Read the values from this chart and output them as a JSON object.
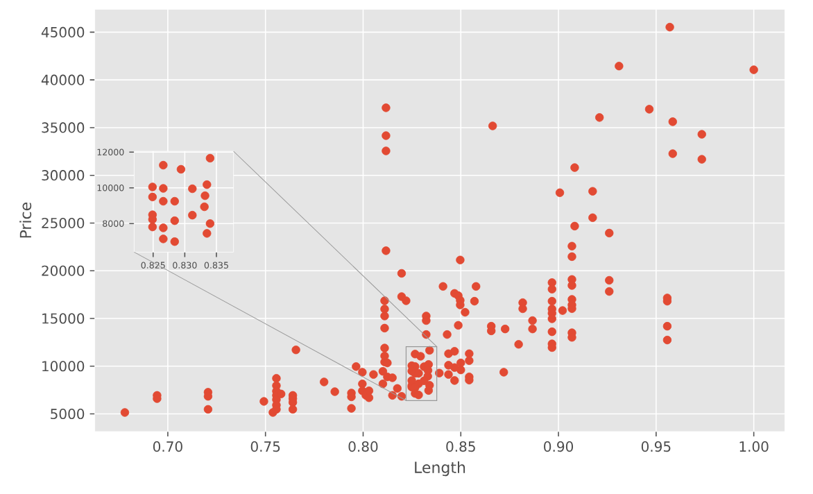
{
  "chart_data": [
    {
      "type": "scatter",
      "xlabel": "Length",
      "ylabel": "Price",
      "color": "#e24a33",
      "marker": "circle",
      "grid": true,
      "xlim": [
        0.6626,
        1.0159
      ],
      "ylim": [
        3150,
        47400
      ],
      "xticks": [
        {
          "value": 0.7,
          "label": "0.70"
        },
        {
          "value": 0.75,
          "label": "0.75"
        },
        {
          "value": 0.8,
          "label": "0.80"
        },
        {
          "value": 0.85,
          "label": "0.85"
        },
        {
          "value": 0.9,
          "label": "0.90"
        },
        {
          "value": 0.95,
          "label": "0.95"
        },
        {
          "value": 1.0,
          "label": "1.00"
        }
      ],
      "yticks": [
        5000,
        10000,
        15000,
        20000,
        25000,
        30000,
        35000,
        40000,
        45000
      ],
      "x": [
        0.678,
        0.6945,
        0.6945,
        0.7206,
        0.7206,
        0.7206,
        0.7492,
        0.7538,
        0.7556,
        0.7556,
        0.7556,
        0.7556,
        0.7556,
        0.7556,
        0.7556,
        0.758,
        0.764,
        0.764,
        0.764,
        0.764,
        0.7656,
        0.78,
        0.7855,
        0.794,
        0.794,
        0.794,
        0.7964,
        0.7996,
        0.7996,
        0.7996,
        0.8014,
        0.803,
        0.803,
        0.8053,
        0.8101,
        0.8101,
        0.811,
        0.811,
        0.811,
        0.811,
        0.811,
        0.811,
        0.811,
        0.8117,
        0.8117,
        0.8117,
        0.8117,
        0.8124,
        0.8124,
        0.815,
        0.815,
        0.8175,
        0.8197,
        0.8197,
        0.8197,
        0.822,
        0.8323,
        0.8323,
        0.8323,
        0.839,
        0.8409,
        0.843,
        0.8437,
        0.8437,
        0.8437,
        0.8468,
        0.8468,
        0.8468,
        0.8468,
        0.8487,
        0.8497,
        0.8497,
        0.8497,
        0.8487,
        0.85,
        0.85,
        0.8543,
        0.8543,
        0.8543,
        0.8543,
        0.8522,
        0.857,
        0.8578,
        0.8663,
        0.8656,
        0.8656,
        0.8727,
        0.872,
        0.8796,
        0.8817,
        0.8817,
        0.8867,
        0.8867,
        0.8967,
        0.8967,
        0.8967,
        0.8967,
        0.8967,
        0.8967,
        0.8967,
        0.8967,
        0.8967,
        0.9007,
        0.9021,
        0.9069,
        0.9069,
        0.9069,
        0.9069,
        0.9069,
        0.9069,
        0.9069,
        0.9069,
        0.9069,
        0.9083,
        0.9083,
        0.9175,
        0.9175,
        0.921,
        0.926,
        0.926,
        0.926,
        0.931,
        0.9465,
        0.9557,
        0.9557,
        0.9557,
        0.9557,
        0.957,
        0.9585,
        0.9585,
        0.9734,
        0.9734,
        1.0,
        0.8266,
        0.8294,
        0.834,
        0.8249,
        0.8266,
        0.8312,
        0.8335,
        0.8249,
        0.8332,
        0.8266,
        0.8284,
        0.8331,
        0.8284,
        0.8312,
        0.834,
        0.8249,
        0.8249,
        0.8249,
        0.8266,
        0.8335,
        0.8266,
        0.8284
      ],
      "values": [
        5150,
        6940,
        6600,
        7270,
        6840,
        5480,
        6310,
        5150,
        8730,
        7960,
        7380,
        6940,
        6500,
        5920,
        5480,
        7090,
        6940,
        6600,
        6210,
        5480,
        11710,
        8350,
        7330,
        7190,
        6790,
        5580,
        9960,
        9370,
        8150,
        7420,
        6940,
        6690,
        7420,
        9130,
        8150,
        9460,
        13990,
        15260,
        15990,
        16860,
        10440,
        11070,
        11900,
        37080,
        34160,
        32560,
        22100,
        10340,
        8880,
        8790,
        6940,
        7670,
        19730,
        17290,
        6840,
        16860,
        15260,
        14780,
        13320,
        9280,
        18360,
        13320,
        11310,
        10100,
        9130,
        11560,
        9860,
        8500,
        17630,
        17390,
        21130,
        16900,
        16420,
        14280,
        10340,
        9610,
        11310,
        10580,
        8880,
        8540,
        15650,
        16810,
        18360,
        35180,
        14190,
        13700,
        13900,
        9370,
        12290,
        16660,
        16020,
        14780,
        13900,
        18760,
        18070,
        16810,
        15990,
        15550,
        14970,
        13610,
        12340,
        11950,
        28180,
        15830,
        22580,
        21480,
        19090,
        18460,
        17000,
        16420,
        16030,
        13500,
        13020,
        30810,
        24680,
        28330,
        25560,
        36060,
        23950,
        19000,
        17830,
        41450,
        36930,
        17150,
        16810,
        14190,
        12740,
        45530,
        35620,
        32270,
        34300,
        31680,
        41060,
        11270,
        11040,
        11660,
        10050,
        9970,
        9950,
        10180,
        9490,
        9560,
        9250,
        9250,
        8940,
        8160,
        8470,
        8000,
        8490,
        7970,
        7810,
        7760,
        7450,
        7140,
        6990
      ]
    },
    {
      "type": "scatter",
      "color": "#e24a33",
      "marker": "circle",
      "grid": true,
      "xlim": [
        0.822,
        0.8377
      ],
      "ylim": [
        6400,
        12050
      ],
      "xticks": [
        {
          "value": 0.825,
          "label": "0.825"
        },
        {
          "value": 0.83,
          "label": "0.830"
        },
        {
          "value": 0.835,
          "label": "0.835"
        }
      ],
      "yticks": [
        8000,
        10000,
        12000
      ],
      "x": [
        0.8266,
        0.8294,
        0.834,
        0.8249,
        0.8266,
        0.8312,
        0.8335,
        0.8249,
        0.8332,
        0.8266,
        0.8284,
        0.8331,
        0.8284,
        0.8312,
        0.834,
        0.8249,
        0.8249,
        0.8249,
        0.8266,
        0.8335,
        0.8266,
        0.8284
      ],
      "values": [
        11270,
        11040,
        11660,
        10050,
        9970,
        9950,
        10180,
        9490,
        9560,
        9250,
        9250,
        8940,
        8160,
        8470,
        8000,
        8490,
        8230,
        7810,
        7760,
        7450,
        7140,
        6990
      ]
    }
  ]
}
